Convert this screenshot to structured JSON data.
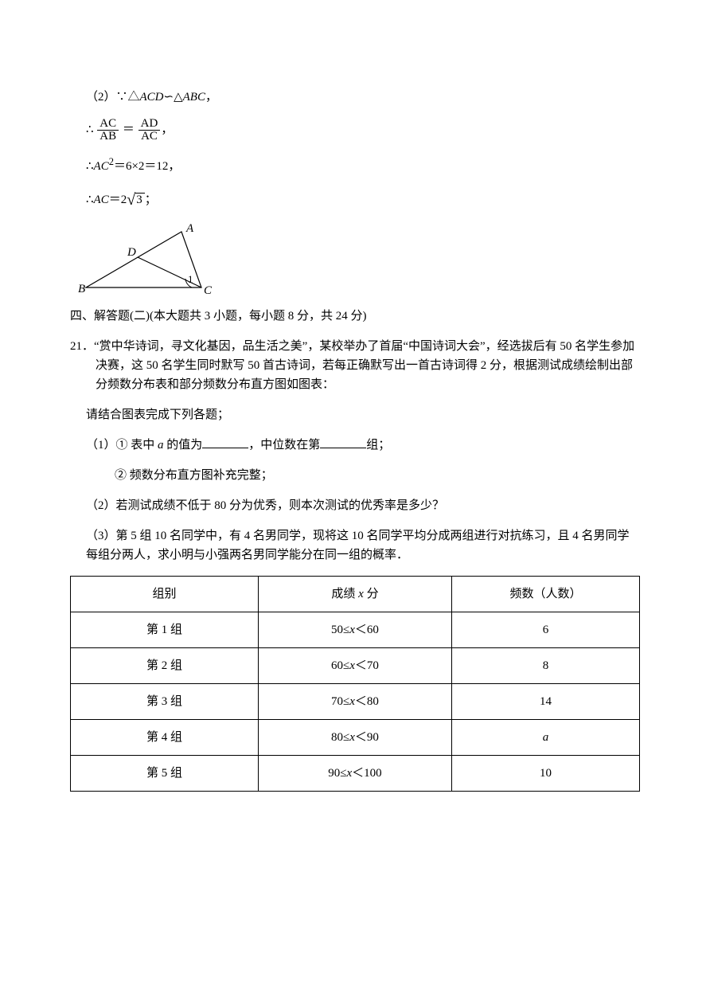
{
  "proof": {
    "step1_prefix": "（2）∵△",
    "step1_t1": "ACD",
    "step1_mid": "∽△",
    "step1_t2": "ABC",
    "step1_suffix": "，",
    "ratio_prefix": "∴",
    "ratio_num1": "AC",
    "ratio_den1": "AB",
    "ratio_eq": "＝",
    "ratio_num2": "AD",
    "ratio_den2": "AC",
    "ratio_suffix": "，",
    "sq_prefix": "∴",
    "sq_var": "AC",
    "sq_exp": "2",
    "sq_eq": "＝6×2＝12，",
    "res_prefix": "∴",
    "res_var": "AC",
    "res_eq": "＝2",
    "res_rad": "3",
    "res_suffix": "；"
  },
  "triangle": {
    "A": "A",
    "B": "B",
    "C": "C",
    "D": "D",
    "ang": "1"
  },
  "section": {
    "title": "四、解答题(二)(本大题共 3 小题，每小题 8 分，共 24 分)"
  },
  "q21": {
    "num": "21．",
    "p1": "“赏中华诗词，寻文化基因，品生活之美”，某校举办了首届“中国诗词大会”，经选拔后有 50 名学生参加决赛，这 50 名学生同时默写 50 首古诗词，若每正确默写出一首古诗词得 2 分，根据测试成绩绘制出部分频数分布表和部分频数分布直方图如图表：",
    "p2": "请结合图表完成下列各题；",
    "s1_pre": "（1）① 表中 ",
    "s1_var": "a",
    "s1_mid1": " 的值为",
    "s1_mid2": "，中位数在第",
    "s1_end": "组；",
    "s1b": "② 频数分布直方图补充完整；",
    "s2": "（2）若测试成绩不低于 80 分为优秀，则本次测试的优秀率是多少？",
    "s3": "（3）第 5 组 10 名同学中，有 4 名男同学，现将这 10 名同学平均分成两组进行对抗练习，且 4 名男同学每组分两人，求小明与小强两名男同学能分在同一组的概率．"
  },
  "table": {
    "headers": [
      "组别",
      "成绩 x 分",
      "频数（人数）"
    ],
    "rows": [
      {
        "group": "第 1 组",
        "range_pre": "50≤",
        "range_var": "x",
        "range_post": "＜60",
        "freq": "6"
      },
      {
        "group": "第 2 组",
        "range_pre": "60≤",
        "range_var": "x",
        "range_post": "＜70",
        "freq": "8"
      },
      {
        "group": "第 3 组",
        "range_pre": "70≤",
        "range_var": "x",
        "range_post": "＜80",
        "freq": "14"
      },
      {
        "group": "第 4 组",
        "range_pre": "80≤",
        "range_var": "x",
        "range_post": "＜90",
        "freq": "a"
      },
      {
        "group": "第 5 组",
        "range_pre": "90≤",
        "range_var": "x",
        "range_post": "＜100",
        "freq": "10"
      }
    ],
    "col_widths": [
      "33%",
      "34%",
      "33%"
    ]
  },
  "blank_widths": {
    "a": 58,
    "b": 58
  },
  "colors": {
    "text": "#000000",
    "bg": "#ffffff",
    "border": "#000000"
  }
}
